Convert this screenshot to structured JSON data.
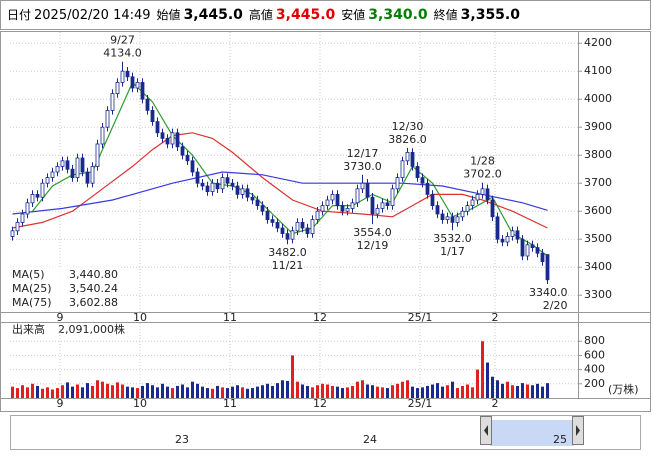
{
  "header": [
    {
      "label": "日付",
      "value": "2025/02/20 14:49",
      "color": "#000000"
    },
    {
      "label": "始値",
      "value": "3,445.0",
      "color": "#000000"
    },
    {
      "label": "高値",
      "value": "3,445.0",
      "color": "#e00000"
    },
    {
      "label": "安値",
      "value": "3,340.0",
      "color": "#008000"
    },
    {
      "label": "終値",
      "value": "3,355.0",
      "color": "#000000"
    }
  ],
  "chart_data": {
    "type": "candlestick",
    "ohlc": [
      [
        3510,
        3545,
        3495,
        3530
      ],
      [
        3530,
        3575,
        3515,
        3560
      ],
      [
        3560,
        3605,
        3545,
        3590
      ],
      [
        3590,
        3645,
        3575,
        3630
      ],
      [
        3630,
        3675,
        3615,
        3660
      ],
      [
        3660,
        3675,
        3635,
        3650
      ],
      [
        3650,
        3715,
        3635,
        3700
      ],
      [
        3700,
        3735,
        3685,
        3720
      ],
      [
        3720,
        3755,
        3705,
        3740
      ],
      [
        3740,
        3775,
        3725,
        3760
      ],
      [
        3760,
        3795,
        3745,
        3780
      ],
      [
        3780,
        3795,
        3735,
        3750
      ],
      [
        3750,
        3765,
        3705,
        3720
      ],
      [
        3720,
        3805,
        3705,
        3790
      ],
      [
        3790,
        3805,
        3725,
        3740
      ],
      [
        3740,
        3755,
        3685,
        3700
      ],
      [
        3700,
        3775,
        3685,
        3760
      ],
      [
        3760,
        3855,
        3745,
        3840
      ],
      [
        3840,
        3915,
        3825,
        3900
      ],
      [
        3900,
        3975,
        3885,
        3960
      ],
      [
        3960,
        4035,
        3945,
        4020
      ],
      [
        4020,
        4075,
        4005,
        4060
      ],
      [
        4060,
        4134,
        4045,
        4100
      ],
      [
        4100,
        4115,
        4065,
        4080
      ],
      [
        4080,
        4095,
        4025,
        4040
      ],
      [
        4040,
        4075,
        4025,
        4060
      ],
      [
        4060,
        4075,
        3985,
        4000
      ],
      [
        4000,
        4015,
        3945,
        3960
      ],
      [
        3960,
        3975,
        3905,
        3920
      ],
      [
        3920,
        3935,
        3865,
        3880
      ],
      [
        3880,
        3895,
        3845,
        3860
      ],
      [
        3860,
        3875,
        3825,
        3840
      ],
      [
        3840,
        3895,
        3825,
        3880
      ],
      [
        3880,
        3895,
        3815,
        3830
      ],
      [
        3830,
        3845,
        3785,
        3800
      ],
      [
        3800,
        3815,
        3765,
        3780
      ],
      [
        3780,
        3795,
        3725,
        3740
      ],
      [
        3740,
        3755,
        3685,
        3700
      ],
      [
        3700,
        3715,
        3675,
        3690
      ],
      [
        3690,
        3705,
        3655,
        3670
      ],
      [
        3670,
        3715,
        3655,
        3700
      ],
      [
        3700,
        3715,
        3665,
        3680
      ],
      [
        3680,
        3735,
        3665,
        3720
      ],
      [
        3720,
        3735,
        3685,
        3700
      ],
      [
        3700,
        3715,
        3675,
        3690
      ],
      [
        3690,
        3705,
        3645,
        3660
      ],
      [
        3660,
        3695,
        3645,
        3680
      ],
      [
        3680,
        3695,
        3635,
        3650
      ],
      [
        3650,
        3665,
        3625,
        3640
      ],
      [
        3640,
        3655,
        3605,
        3620
      ],
      [
        3620,
        3635,
        3585,
        3600
      ],
      [
        3600,
        3615,
        3555,
        3570
      ],
      [
        3570,
        3585,
        3545,
        3560
      ],
      [
        3560,
        3575,
        3525,
        3540
      ],
      [
        3540,
        3555,
        3505,
        3520
      ],
      [
        3520,
        3535,
        3482,
        3500
      ],
      [
        3500,
        3545,
        3485,
        3530
      ],
      [
        3530,
        3575,
        3515,
        3560
      ],
      [
        3560,
        3575,
        3525,
        3540
      ],
      [
        3540,
        3555,
        3505,
        3520
      ],
      [
        3520,
        3585,
        3505,
        3570
      ],
      [
        3570,
        3615,
        3555,
        3600
      ],
      [
        3600,
        3635,
        3585,
        3620
      ],
      [
        3620,
        3655,
        3605,
        3640
      ],
      [
        3640,
        3675,
        3625,
        3660
      ],
      [
        3660,
        3675,
        3605,
        3620
      ],
      [
        3620,
        3635,
        3585,
        3600
      ],
      [
        3600,
        3625,
        3585,
        3610
      ],
      [
        3610,
        3645,
        3595,
        3630
      ],
      [
        3630,
        3695,
        3615,
        3680
      ],
      [
        3680,
        3730,
        3665,
        3700
      ],
      [
        3700,
        3715,
        3635,
        3650
      ],
      [
        3650,
        3665,
        3554,
        3590
      ],
      [
        3590,
        3625,
        3575,
        3610
      ],
      [
        3610,
        3645,
        3595,
        3630
      ],
      [
        3630,
        3645,
        3605,
        3620
      ],
      [
        3620,
        3695,
        3605,
        3680
      ],
      [
        3680,
        3735,
        3665,
        3720
      ],
      [
        3720,
        3795,
        3705,
        3780
      ],
      [
        3780,
        3826,
        3765,
        3810
      ],
      [
        3810,
        3825,
        3745,
        3760
      ],
      [
        3760,
        3775,
        3705,
        3720
      ],
      [
        3720,
        3735,
        3685,
        3700
      ],
      [
        3700,
        3715,
        3645,
        3660
      ],
      [
        3660,
        3675,
        3605,
        3620
      ],
      [
        3620,
        3635,
        3575,
        3590
      ],
      [
        3590,
        3605,
        3555,
        3570
      ],
      [
        3570,
        3595,
        3555,
        3580
      ],
      [
        3580,
        3595,
        3532,
        3560
      ],
      [
        3560,
        3595,
        3545,
        3580
      ],
      [
        3580,
        3615,
        3565,
        3600
      ],
      [
        3600,
        3635,
        3585,
        3620
      ],
      [
        3620,
        3655,
        3605,
        3640
      ],
      [
        3640,
        3675,
        3625,
        3660
      ],
      [
        3660,
        3702,
        3645,
        3680
      ],
      [
        3680,
        3695,
        3625,
        3640
      ],
      [
        3640,
        3655,
        3565,
        3580
      ],
      [
        3580,
        3595,
        3485,
        3500
      ],
      [
        3500,
        3515,
        3475,
        3490
      ],
      [
        3490,
        3525,
        3475,
        3510
      ],
      [
        3510,
        3545,
        3495,
        3530
      ],
      [
        3530,
        3545,
        3485,
        3500
      ],
      [
        3500,
        3515,
        3425,
        3440
      ],
      [
        3440,
        3495,
        3425,
        3480
      ],
      [
        3480,
        3495,
        3455,
        3470
      ],
      [
        3470,
        3485,
        3435,
        3450
      ],
      [
        3450,
        3465,
        3405,
        3420
      ],
      [
        3445,
        3445,
        3340,
        3355
      ]
    ],
    "up_color": "#ffffff",
    "down_color": "#1a2a8c",
    "edge_color": "#1a2a8c",
    "ylim": [
      3240,
      4240
    ],
    "yticks": [
      3300,
      3400,
      3500,
      3600,
      3700,
      3800,
      3900,
      4000,
      4100,
      4200
    ],
    "grid": true,
    "x_labels": [
      "9",
      "10",
      "11",
      "12",
      "25/1",
      "2"
    ],
    "x_label_index": [
      10,
      26,
      44,
      62,
      82,
      97
    ],
    "ma": [
      {
        "name": "MA(5)",
        "color": "#2e9e2e",
        "value_label": "3,440.80",
        "x": [
          4,
          8,
          12,
          16,
          20,
          24,
          28,
          32,
          36,
          40,
          44,
          48,
          52,
          56,
          60,
          64,
          68,
          72,
          76,
          80,
          84,
          88,
          92,
          96,
          100,
          104,
          107
        ],
        "values": [
          3600,
          3690,
          3730,
          3740,
          3900,
          4060,
          3990,
          3870,
          3800,
          3700,
          3690,
          3660,
          3590,
          3520,
          3540,
          3620,
          3620,
          3660,
          3630,
          3760,
          3700,
          3580,
          3610,
          3650,
          3520,
          3480,
          3440
        ]
      },
      {
        "name": "MA(25)",
        "color": "#e03030",
        "value_label": "3,540.24",
        "x": [
          0,
          6,
          12,
          18,
          24,
          28,
          32,
          36,
          40,
          44,
          50,
          56,
          62,
          70,
          76,
          80,
          84,
          90,
          94,
          100,
          107
        ],
        "values": [
          3540,
          3560,
          3600,
          3680,
          3760,
          3820,
          3870,
          3880,
          3860,
          3810,
          3720,
          3640,
          3600,
          3590,
          3580,
          3620,
          3660,
          3660,
          3640,
          3600,
          3540
        ]
      },
      {
        "name": "MA(75)",
        "color": "#3a3ae0",
        "value_label": "3,602.88",
        "x": [
          0,
          10,
          20,
          32,
          42,
          50,
          58,
          66,
          78,
          86,
          94,
          102,
          107
        ],
        "values": [
          3590,
          3610,
          3640,
          3700,
          3740,
          3730,
          3700,
          3700,
          3700,
          3690,
          3660,
          3630,
          3603
        ]
      }
    ],
    "annotations": [
      {
        "date": "9/27",
        "price": "4134.0",
        "index": 22,
        "side": "high"
      },
      {
        "date": "11/21",
        "price": "3482.0",
        "index": 55,
        "side": "low"
      },
      {
        "date": "12/17",
        "price": "3730.0",
        "index": 70,
        "side": "high"
      },
      {
        "date": "12/19",
        "price": "3554.0",
        "index": 72,
        "side": "low"
      },
      {
        "date": "12/30",
        "price": "3826.0",
        "index": 79,
        "side": "high"
      },
      {
        "date": "1/17",
        "price": "3532.0",
        "index": 88,
        "side": "low"
      },
      {
        "date": "1/28",
        "price": "3702.0",
        "index": 94,
        "side": "high"
      },
      {
        "date": "2/20",
        "price": "3340.0",
        "index": 107,
        "side": "low"
      }
    ],
    "volume": {
      "label": "出来高",
      "value_label": "2,091,000株",
      "unit": "(万株)",
      "up_color": "#e02020",
      "down_color": "#1a2a8c",
      "ylim": [
        0,
        1057
      ],
      "yticks": [
        200,
        400,
        600,
        800
      ],
      "values": [
        160,
        140,
        180,
        150,
        200,
        170,
        130,
        150,
        120,
        140,
        180,
        220,
        160,
        190,
        150,
        210,
        170,
        250,
        230,
        200,
        180,
        220,
        190,
        160,
        150,
        140,
        170,
        210,
        180,
        150,
        200,
        160,
        140,
        170,
        190,
        150,
        230,
        200,
        160,
        140,
        130,
        170,
        150,
        140,
        160,
        180,
        150,
        130,
        140,
        160,
        180,
        200,
        170,
        210,
        250,
        240,
        600,
        230,
        190,
        170,
        150,
        180,
        200,
        190,
        170,
        160,
        140,
        150,
        170,
        230,
        250,
        190,
        180,
        160,
        150,
        140,
        180,
        200,
        230,
        250,
        160,
        140,
        150,
        170,
        190,
        210,
        160,
        180,
        230,
        140,
        170,
        190,
        150,
        400,
        800,
        500,
        300,
        250,
        200,
        230,
        180,
        170,
        210,
        190,
        180,
        200,
        160,
        209
      ]
    },
    "navigator": {
      "labels": [
        "23",
        "24",
        "25"
      ]
    }
  }
}
